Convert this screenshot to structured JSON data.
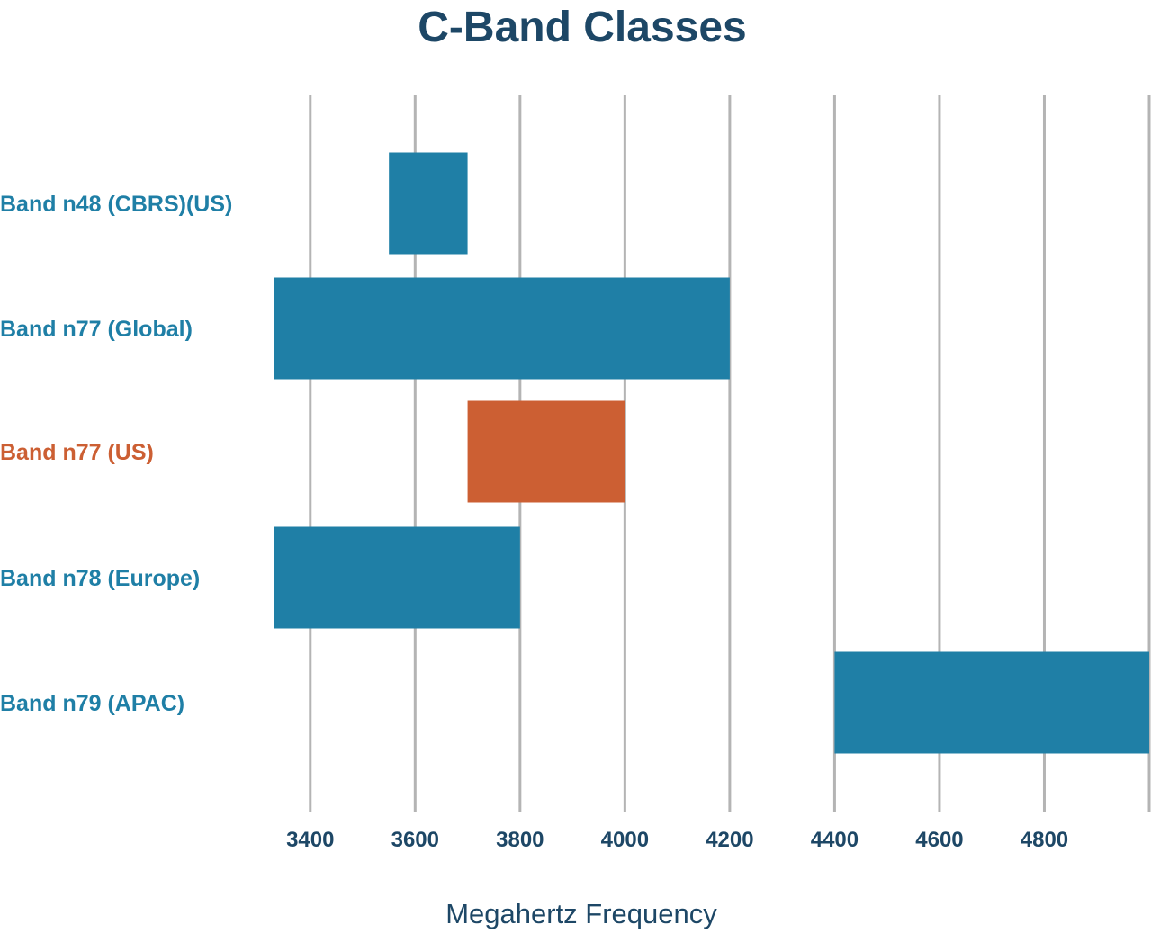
{
  "colors": {
    "title": "#1d4766",
    "axis_text": "#1d4766",
    "bar_default": "#1f7fa6",
    "bar_highlight": "#cc5f33",
    "label_default": "#1f7fa6",
    "label_highlight": "#cc5f33",
    "grid": "#b4b4b4"
  },
  "chart_data": {
    "type": "bar",
    "orientation": "horizontal-range",
    "title": "C-Band Classes",
    "xlabel": "Megahertz Frequency",
    "ylabel": "",
    "xlim": [
      3330,
      5000
    ],
    "grid": true,
    "x_ticks": [
      3400,
      3600,
      3800,
      4000,
      4200,
      4400,
      4600,
      4800
    ],
    "x_tick_labels": [
      "3400",
      "3600",
      "3800",
      "4000",
      "4200",
      "4400",
      "4600",
      "4800"
    ],
    "categories": [
      "Band n48 (CBRS)(US)",
      "Band n77 (Global)",
      "Band n77 (US)",
      "Band n78 (Europe)",
      "Band n79 (APAC)"
    ],
    "ranges": [
      {
        "start": 3550,
        "end": 3700,
        "highlight": false
      },
      {
        "start": 3300,
        "end": 4200,
        "highlight": false
      },
      {
        "start": 3700,
        "end": 4000,
        "highlight": true
      },
      {
        "start": 3300,
        "end": 3800,
        "highlight": false
      },
      {
        "start": 4400,
        "end": 5000,
        "highlight": false
      }
    ]
  }
}
